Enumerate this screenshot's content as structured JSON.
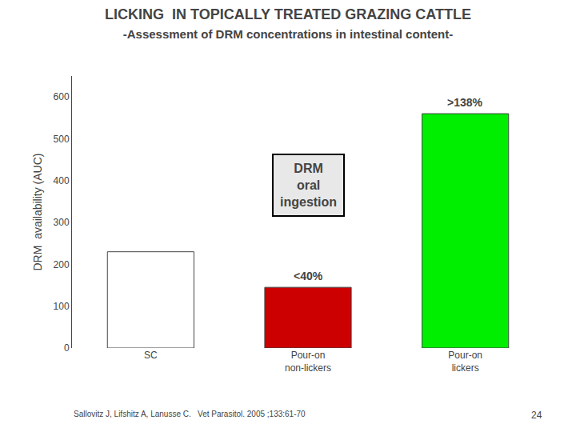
{
  "chart_data": {
    "type": "bar",
    "title": "LICKING  IN TOPICALLY TREATED GRAZING CATTLE",
    "subtitle": "-Assessment of DRM concentrations in intestinal content-",
    "categories": [
      "SC",
      "Pour-on\nnon-lickers",
      "Pour-on\nlickers"
    ],
    "values": [
      230,
      145,
      560
    ],
    "colors": [
      "#ffffff",
      "#cc0000",
      "#00ee00"
    ],
    "ylabel": "DRM  availability (AUC)",
    "ylim": [
      0,
      650
    ],
    "yticks": [
      0,
      100,
      200,
      300,
      400,
      500,
      600
    ],
    "grid": false,
    "annotations": [
      {
        "text": "<40%",
        "category": "Pour-on\nnon-lickers"
      },
      {
        "text": ">138%",
        "category": "Pour-on\nlickers"
      },
      {
        "text": "DRM\noral\ningestion"
      }
    ],
    "footer": "Sallovitz J, Lifshitz A, Lanusse C.   Vet Parasitol. 2005 ;133:61-70",
    "page_number": "24"
  }
}
